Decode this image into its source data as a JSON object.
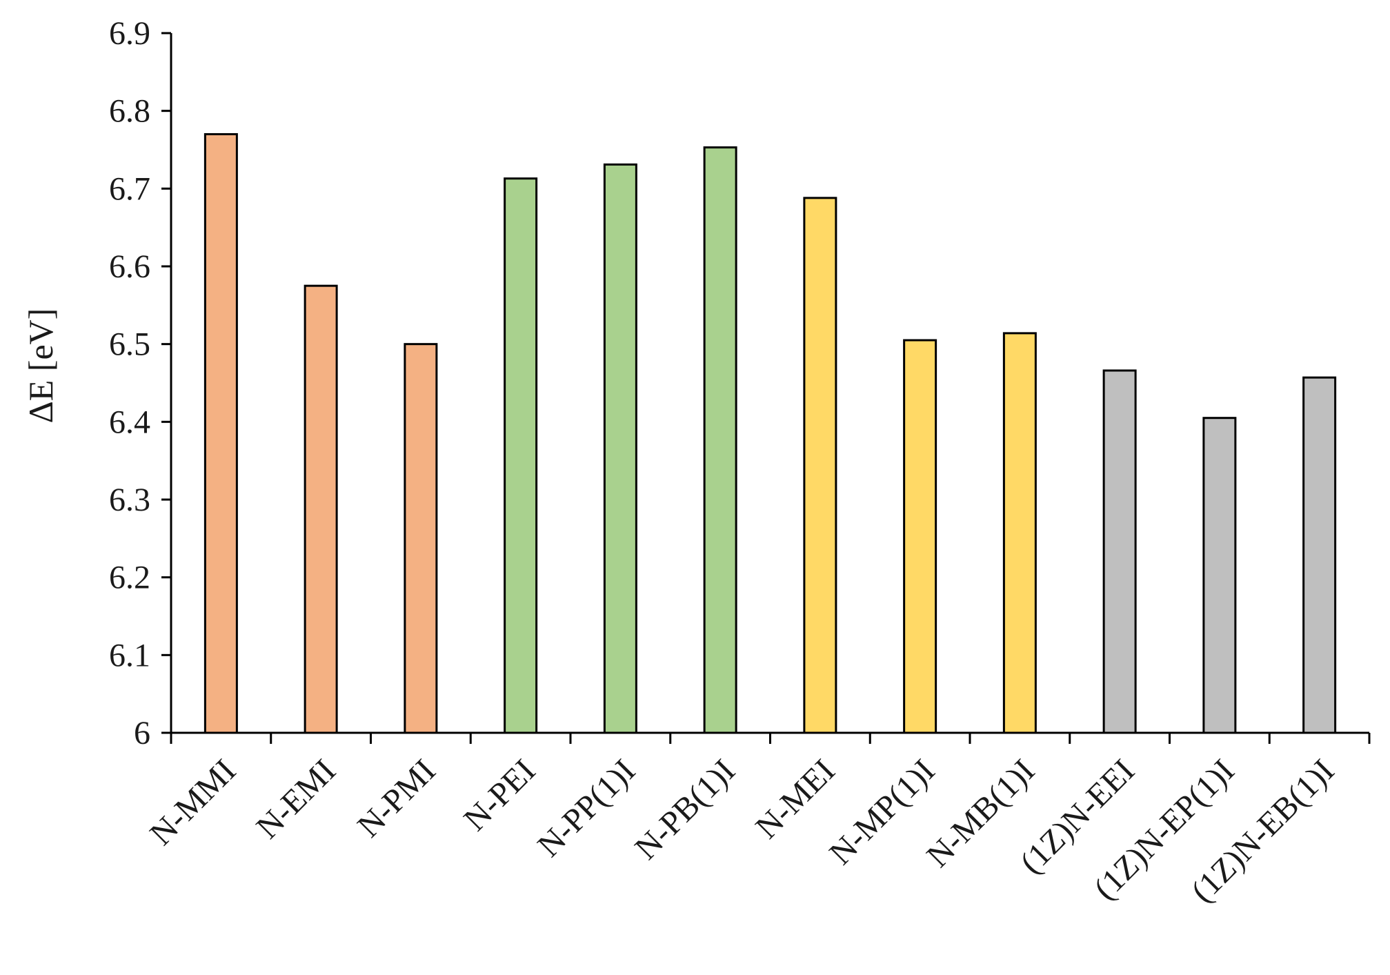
{
  "chart_data": {
    "type": "bar",
    "title": "",
    "xlabel": "",
    "ylabel": "ΔE [eV]",
    "ylim": [
      6,
      6.9
    ],
    "yticks": [
      "6",
      "6.1",
      "6.2",
      "6.3",
      "6.4",
      "6.5",
      "6.6",
      "6.7",
      "6.8",
      "6.9"
    ],
    "grid": false,
    "legend": "none",
    "categories": [
      "N-MMI",
      "N-EMI",
      "N-PMI",
      "N-PEI",
      "N-PP(1)I",
      "N-PB(1)I",
      "N-MEI",
      "N-MP(1)I",
      "N-MB(1)I",
      "(1Z)N-EEI",
      "(1Z)N-EP(1)I",
      "(1Z)N-EB(1)I"
    ],
    "values": [
      6.77,
      6.575,
      6.5,
      6.713,
      6.731,
      6.753,
      6.688,
      6.505,
      6.514,
      6.466,
      6.405,
      6.457
    ],
    "bar_colors": [
      "#F4B183",
      "#F4B183",
      "#F4B183",
      "#A9D18E",
      "#A9D18E",
      "#A9D18E",
      "#FFD966",
      "#FFD966",
      "#FFD966",
      "#BFBFBF",
      "#BFBFBF",
      "#BFBFBF"
    ],
    "bar_outline_color": "#000000"
  }
}
